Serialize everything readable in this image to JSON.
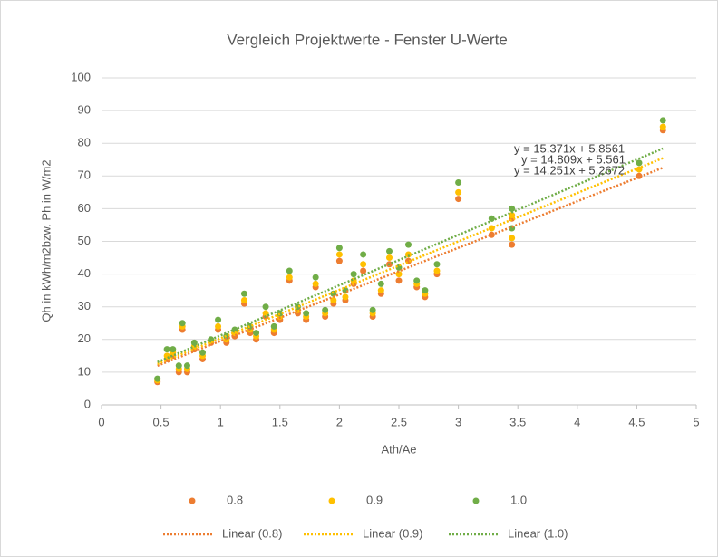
{
  "chart_data": {
    "type": "scatter",
    "title": "Vergleich Projektwerte - Fenster U-Werte",
    "x_label": "Ath/Ae",
    "y_label": "Qh in kWh/m2bzw. Ph in W/m2",
    "x": [
      0.47,
      0.55,
      0.6,
      0.65,
      0.68,
      0.72,
      0.78,
      0.85,
      0.92,
      0.98,
      1.05,
      1.12,
      1.2,
      1.25,
      1.3,
      1.38,
      1.45,
      1.5,
      1.58,
      1.65,
      1.72,
      1.8,
      1.88,
      1.95,
      2.0,
      2.05,
      2.12,
      2.2,
      2.28,
      2.35,
      2.42,
      2.5,
      2.58,
      2.65,
      2.72,
      2.82,
      3.0,
      3.28,
      3.45,
      3.45,
      4.52,
      4.72
    ],
    "series": [
      {
        "name": "0.8",
        "color": "#ED7D31",
        "values": [
          7,
          14,
          15,
          10,
          23,
          10,
          17,
          14,
          19,
          23,
          19,
          21,
          31,
          22,
          20,
          27,
          22,
          26,
          38,
          28,
          26,
          36,
          27,
          31,
          44,
          32,
          37,
          41,
          27,
          34,
          43,
          38,
          44,
          36,
          33,
          40,
          63,
          52,
          49,
          57,
          70,
          84
        ]
      },
      {
        "name": "0.9",
        "color": "#FFC000",
        "values": [
          7.5,
          15,
          16,
          11,
          24,
          11,
          18,
          15,
          19.5,
          24,
          20,
          22,
          32,
          23,
          21,
          28,
          23,
          27,
          39,
          29,
          27,
          37,
          28,
          32,
          46,
          33,
          38,
          43,
          28,
          35,
          45,
          40,
          46,
          37,
          34,
          41,
          65,
          54,
          51,
          58,
          72,
          85
        ]
      },
      {
        "name": "1.0",
        "color": "#70AD47",
        "values": [
          8,
          17,
          17,
          12,
          25,
          12,
          19,
          16,
          20,
          26,
          21,
          23,
          34,
          24,
          22,
          30,
          24,
          28,
          41,
          30,
          28,
          39,
          29,
          34,
          48,
          35,
          40,
          46,
          29,
          37,
          47,
          42,
          49,
          38,
          35,
          43,
          68,
          57,
          54,
          60,
          74,
          87
        ]
      }
    ],
    "trendlines": [
      {
        "name": "Linear (0.8)",
        "color": "#ED7D31",
        "slope": 14.251,
        "intercept": 5.2672,
        "label": "y = 14.251x + 5.2672"
      },
      {
        "name": "Linear (0.9)",
        "color": "#FFC000",
        "slope": 14.809,
        "intercept": 5.561,
        "label": "y = 14.809x + 5.561"
      },
      {
        "name": "Linear (1.0)",
        "color": "#70AD47",
        "slope": 15.371,
        "intercept": 5.8561,
        "label": "y = 15.371x + 5.8561"
      }
    ],
    "xlim": [
      0,
      5
    ],
    "xticks": [
      0,
      0.5,
      1,
      1.5,
      2,
      2.5,
      3,
      3.5,
      4,
      4.5,
      5
    ],
    "ylim": [
      0,
      100
    ],
    "yticks": [
      0,
      10,
      20,
      30,
      40,
      50,
      60,
      70,
      80,
      90,
      100
    ],
    "grid": true,
    "legend": "bottom"
  }
}
